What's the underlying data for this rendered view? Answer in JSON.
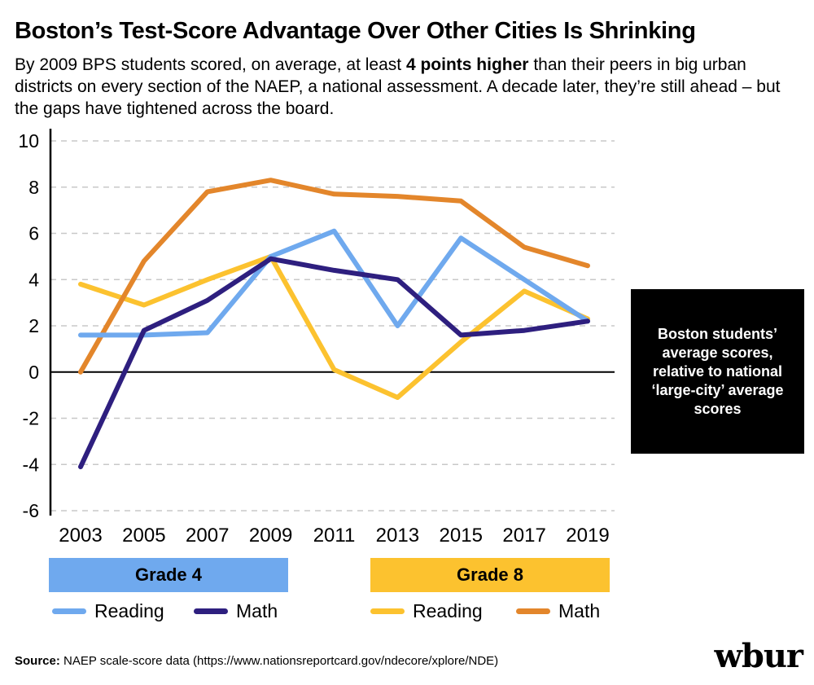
{
  "header": {
    "title": "Boston’s Test-Score Advantage Over Other Cities Is Shrinking",
    "subtitle_pre": "By 2009 BPS students scored, on average, at least ",
    "subtitle_bold": "4 points higher",
    "subtitle_post": " than their peers in big urban districts on every section of the NAEP, a national assessment. A decade later, they’re still ahead – but the gaps have tightened across the board."
  },
  "note_box": {
    "text": "Boston students’ average scores, relative to national ‘large-city’ average scores"
  },
  "groups": {
    "grade4": "Grade 4",
    "grade8": "Grade 8"
  },
  "legend": {
    "g4_reading": "Reading",
    "g4_math": "Math",
    "g8_reading": "Reading",
    "g8_math": "Math"
  },
  "source": {
    "label": "Source:",
    "text": " NAEP scale-score data (https://www.nationsreportcard.gov/ndecore/xplore/NDE)"
  },
  "logo": "wbur",
  "colors": {
    "grade4_reading": "#6fa9ee",
    "grade4_math": "#2e1f7f",
    "grade8_reading": "#fcc22f",
    "grade8_math": "#e3862b"
  },
  "chart_data": {
    "type": "line",
    "x": [
      "2003",
      "2005",
      "2007",
      "2009",
      "2011",
      "2013",
      "2015",
      "2017",
      "2019"
    ],
    "ylim": [
      -6,
      10
    ],
    "yticks": [
      10,
      8,
      6,
      4,
      2,
      0,
      -2,
      -4,
      -6
    ],
    "grid": true,
    "series": [
      {
        "name": "Grade 4 Reading",
        "values": [
          1.6,
          1.6,
          1.7,
          5.0,
          6.1,
          2.0,
          5.8,
          4.0,
          2.2
        ]
      },
      {
        "name": "Grade 4 Math",
        "values": [
          -4.1,
          1.8,
          3.1,
          4.9,
          4.4,
          4.0,
          1.6,
          1.8,
          2.2
        ]
      },
      {
        "name": "Grade 8 Reading",
        "values": [
          3.8,
          2.9,
          4.0,
          5.0,
          0.1,
          -1.1,
          1.3,
          3.5,
          2.3
        ]
      },
      {
        "name": "Grade 8 Math",
        "values": [
          0.0,
          4.8,
          7.8,
          8.3,
          7.7,
          7.6,
          7.4,
          5.4,
          4.6
        ]
      }
    ]
  }
}
